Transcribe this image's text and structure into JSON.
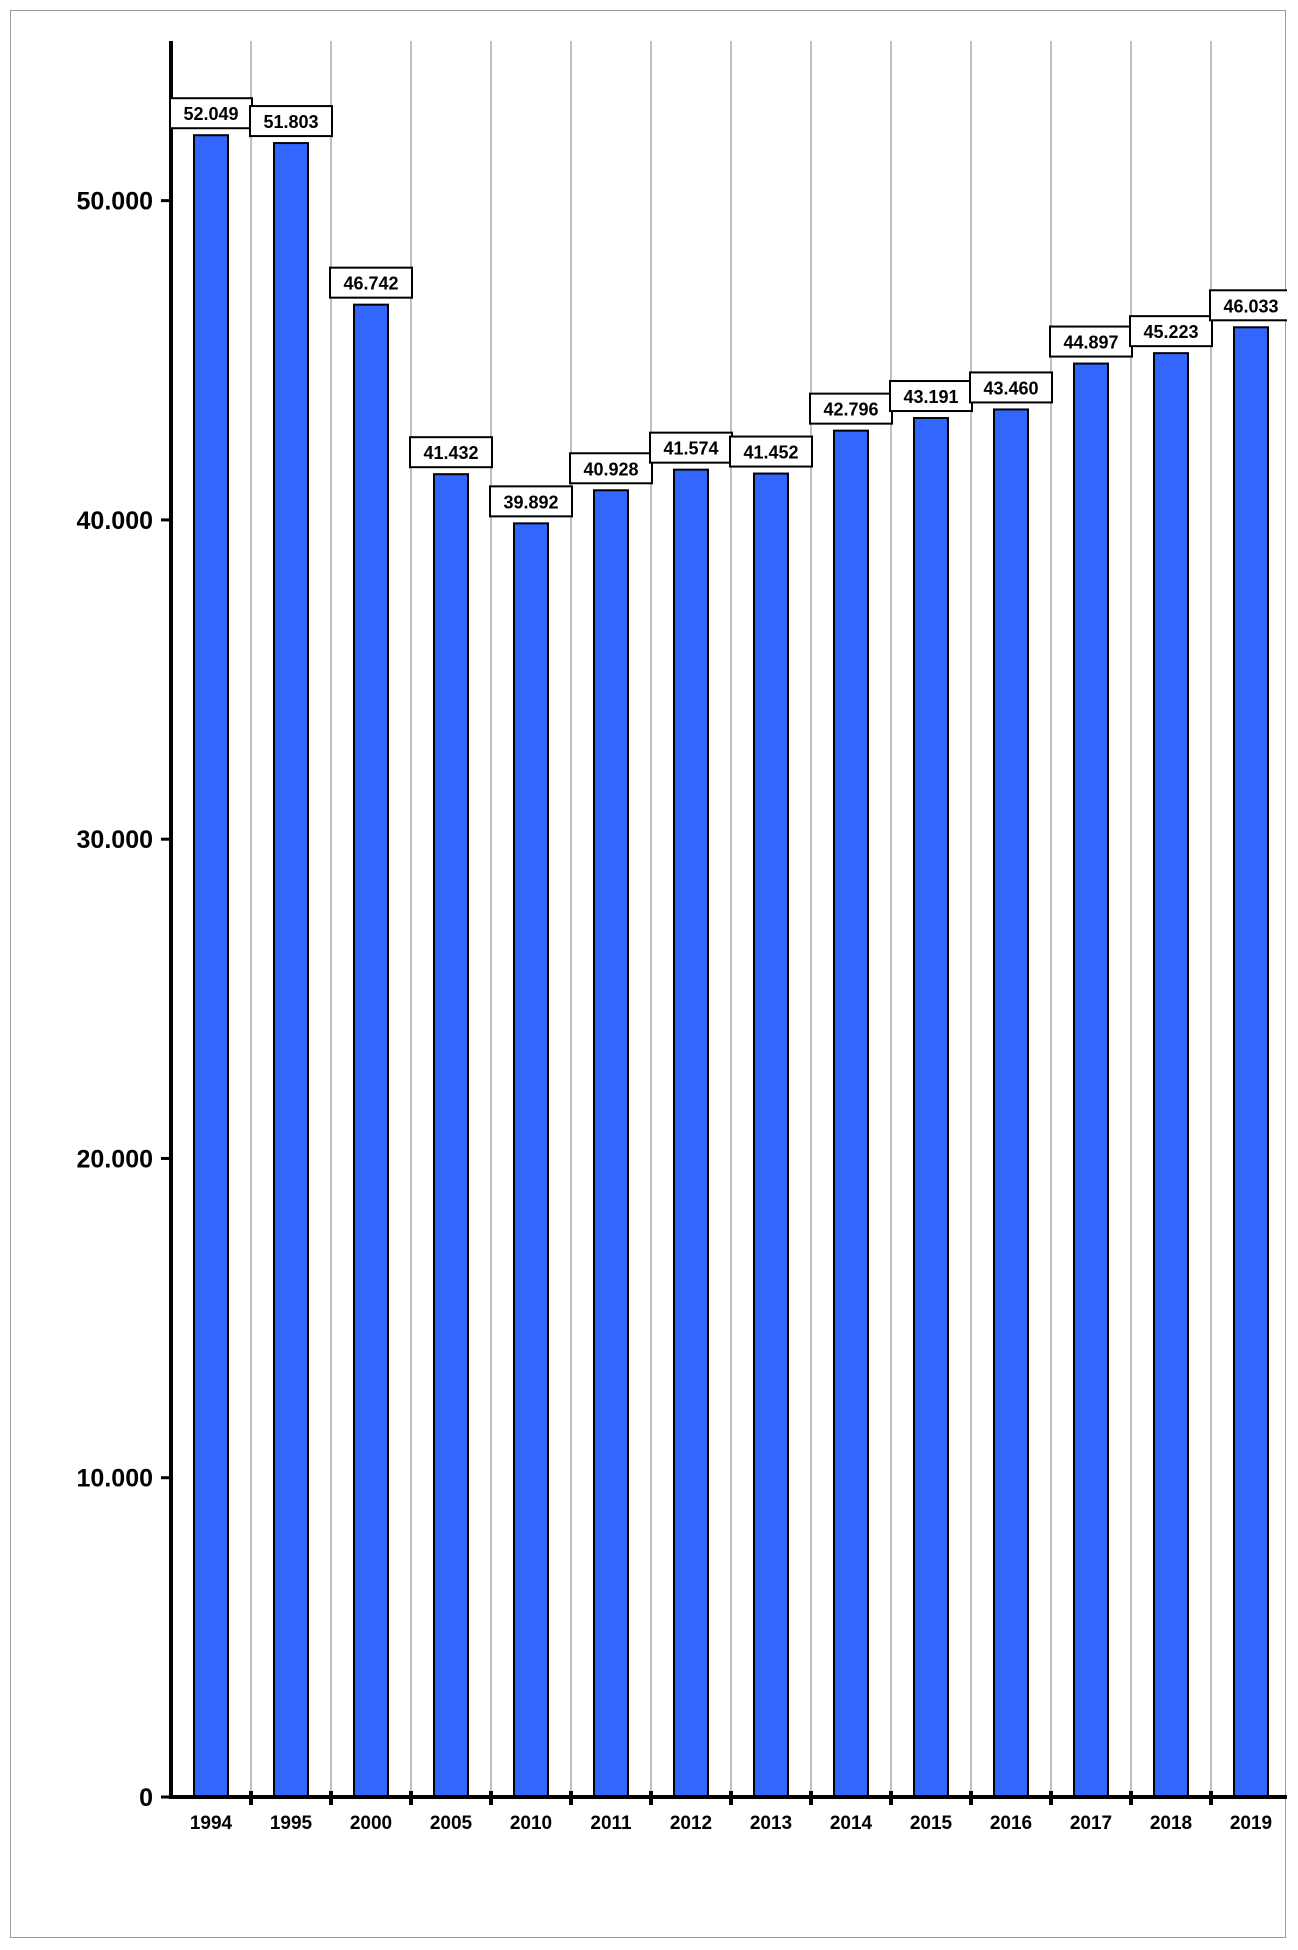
{
  "chart_data": {
    "type": "bar",
    "title": "",
    "xlabel": "",
    "ylabel": "",
    "categories": [
      "1994",
      "1995",
      "2000",
      "2005",
      "2010",
      "2011",
      "2012",
      "2013",
      "2014",
      "2015",
      "2016",
      "2017",
      "2018",
      "2019"
    ],
    "values": [
      52049,
      51803,
      46742,
      41432,
      39892,
      40928,
      41574,
      41452,
      42796,
      43191,
      43460,
      44897,
      45223,
      46033
    ],
    "data_labels": [
      "52.049",
      "51.803",
      "46.742",
      "41.432",
      "39.892",
      "40.928",
      "41.574",
      "41.452",
      "42.796",
      "43.191",
      "43.460",
      "44.897",
      "45.223",
      "46.033"
    ],
    "y_ticks": [
      0,
      10000,
      20000,
      30000,
      40000,
      50000
    ],
    "y_tick_labels": [
      "0",
      "10.000",
      "20.000",
      "30.000",
      "40.000",
      "50.000"
    ],
    "ylim": [
      0,
      55000
    ],
    "grid": "vertical",
    "legend": "none",
    "colors": {
      "bar": "#3366ff",
      "bar_stroke": "#000000",
      "grid": "#808080",
      "axis": "#000000"
    }
  }
}
